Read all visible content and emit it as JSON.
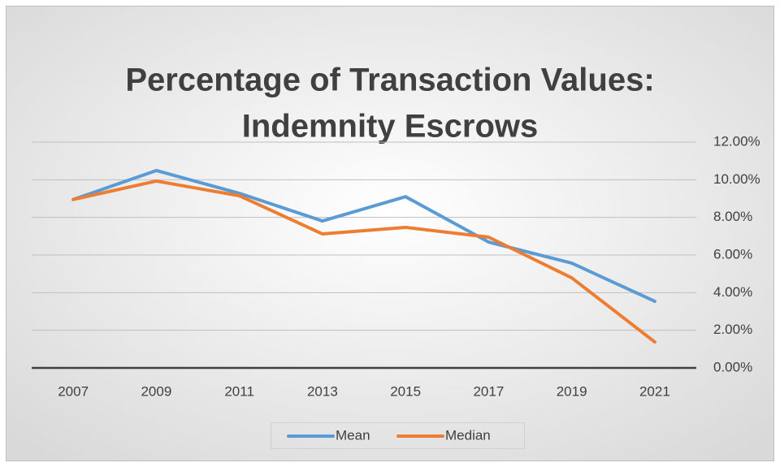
{
  "chart_data": {
    "type": "line",
    "title": [
      "Percentage of Transaction Values:",
      "Indemnity Escrows"
    ],
    "categories": [
      "2007",
      "2009",
      "2011",
      "2013",
      "2015",
      "2017",
      "2019",
      "2021"
    ],
    "series": [
      {
        "name": "Mean",
        "color": "#5b9bd5",
        "values": [
          8.95,
          10.49,
          9.28,
          7.81,
          9.1,
          6.69,
          5.57,
          3.54
        ]
      },
      {
        "name": "Median",
        "color": "#ed7d31",
        "values": [
          8.95,
          9.93,
          9.15,
          7.12,
          7.47,
          6.95,
          4.79,
          1.38
        ]
      }
    ],
    "ylim": [
      0,
      12
    ],
    "yticks": [
      {
        "value": 0,
        "label": "0.00%"
      },
      {
        "value": 2,
        "label": "2.00%"
      },
      {
        "value": 4,
        "label": "4.00%"
      },
      {
        "value": 6,
        "label": "6.00%"
      },
      {
        "value": 8,
        "label": "8.00%"
      },
      {
        "value": 10,
        "label": "10.00%"
      },
      {
        "value": 12,
        "label": "12.00%"
      }
    ],
    "y_axis_side": "right",
    "grid": true,
    "legend": "bottom"
  }
}
